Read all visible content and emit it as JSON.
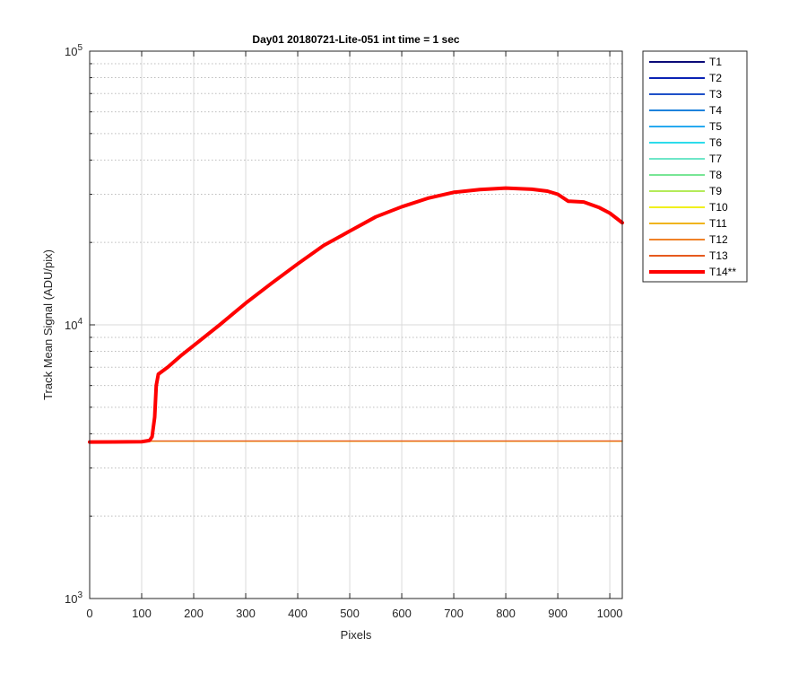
{
  "chart_data": {
    "type": "line",
    "title": "Day01 20180721-Lite-051 int time = 1 sec",
    "xlabel": "Pixels",
    "ylabel": "Track Mean Signal (ADU/pix)",
    "xlim": [
      0,
      1024
    ],
    "ylim": [
      1000,
      100000
    ],
    "yscale": "log",
    "xticks": [
      0,
      100,
      200,
      300,
      400,
      500,
      600,
      700,
      800,
      900,
      1000
    ],
    "yticks_major": [
      {
        "base": "10",
        "exp": "3"
      },
      {
        "base": "10",
        "exp": "4"
      },
      {
        "base": "10",
        "exp": "5"
      }
    ],
    "grid": true,
    "legend_position": "outside-right",
    "series": [
      {
        "name": "T1",
        "color": "#0a0a78",
        "baseline": 3750
      },
      {
        "name": "T2",
        "color": "#0a22b4",
        "baseline": 3750
      },
      {
        "name": "T3",
        "color": "#1e50c8",
        "baseline": 3750
      },
      {
        "name": "T4",
        "color": "#1e82dc",
        "baseline": 3750
      },
      {
        "name": "T5",
        "color": "#28aaf0",
        "baseline": 3750
      },
      {
        "name": "T6",
        "color": "#2ddceb",
        "baseline": 3750
      },
      {
        "name": "T7",
        "color": "#6ee6c8",
        "baseline": 3750
      },
      {
        "name": "T8",
        "color": "#78e696",
        "baseline": 3750
      },
      {
        "name": "T9",
        "color": "#b4eb5a",
        "baseline": 3750
      },
      {
        "name": "T10",
        "color": "#f0f01e",
        "baseline": 3750
      },
      {
        "name": "T11",
        "color": "#f0b41e",
        "baseline": 3755
      },
      {
        "name": "T12",
        "color": "#f08228",
        "baseline": 3760
      },
      {
        "name": "T13",
        "color": "#e65a1e",
        "baseline": 3765
      },
      {
        "name": "T14**",
        "color": "#ff0000",
        "highlight": true,
        "x": [
          0,
          100,
          115,
          120,
          125,
          128,
          132,
          150,
          175,
          200,
          250,
          300,
          350,
          400,
          450,
          500,
          550,
          600,
          650,
          700,
          750,
          800,
          850,
          880,
          900,
          920,
          950,
          980,
          1000,
          1024
        ],
        "y": [
          3730,
          3740,
          3780,
          3900,
          4600,
          6000,
          6600,
          7000,
          7700,
          8400,
          10000,
          12000,
          14200,
          16700,
          19500,
          22000,
          24800,
          27000,
          29000,
          30500,
          31200,
          31600,
          31300,
          30800,
          30000,
          28300,
          28100,
          26800,
          25600,
          23600
        ]
      }
    ]
  }
}
